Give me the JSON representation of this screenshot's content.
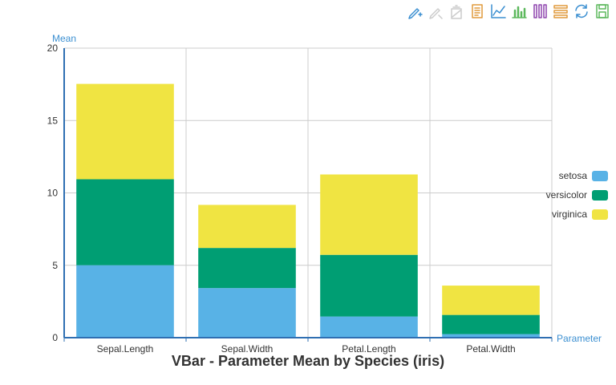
{
  "toolbar": [
    {
      "name": "mark-pen-icon",
      "color": "#3b8fd1"
    },
    {
      "name": "mark-undo-icon",
      "color": "#cccccc"
    },
    {
      "name": "mark-clear-icon",
      "color": "#cccccc"
    },
    {
      "name": "data-view-icon",
      "color": "#e09a3c"
    },
    {
      "name": "line-chart-icon",
      "color": "#3b8fd1"
    },
    {
      "name": "bar-chart-icon",
      "color": "#5cb85c"
    },
    {
      "name": "stack-icon",
      "color": "#8e44ad"
    },
    {
      "name": "tiled-icon",
      "color": "#e09a3c"
    },
    {
      "name": "restore-icon",
      "color": "#3b8fd1"
    },
    {
      "name": "save-image-icon",
      "color": "#5cb85c"
    }
  ],
  "colors": {
    "setosa": "#58b2e6",
    "versicolor": "#009e73",
    "virginica": "#f0e442",
    "axis": "#2f6fb2",
    "axis_name": "#3b8fd1",
    "grid": "#cccccc"
  },
  "chart_data": {
    "type": "bar",
    "stacked": true,
    "title": "VBar - Parameter Mean by Species (iris)",
    "xlabel": "Parameter",
    "ylabel": "Mean",
    "categories": [
      "Sepal.Length",
      "Sepal.Width",
      "Petal.Length",
      "Petal.Width"
    ],
    "series": [
      {
        "name": "setosa",
        "values": [
          5.006,
          3.428,
          1.462,
          0.246
        ]
      },
      {
        "name": "versicolor",
        "values": [
          5.936,
          2.77,
          4.26,
          1.326
        ]
      },
      {
        "name": "virginica",
        "values": [
          6.588,
          2.974,
          5.552,
          2.026
        ]
      }
    ],
    "ylim": [
      0,
      20
    ],
    "yticks": [
      0,
      5,
      10,
      15,
      20
    ],
    "grid": true,
    "legend_position": "right"
  }
}
